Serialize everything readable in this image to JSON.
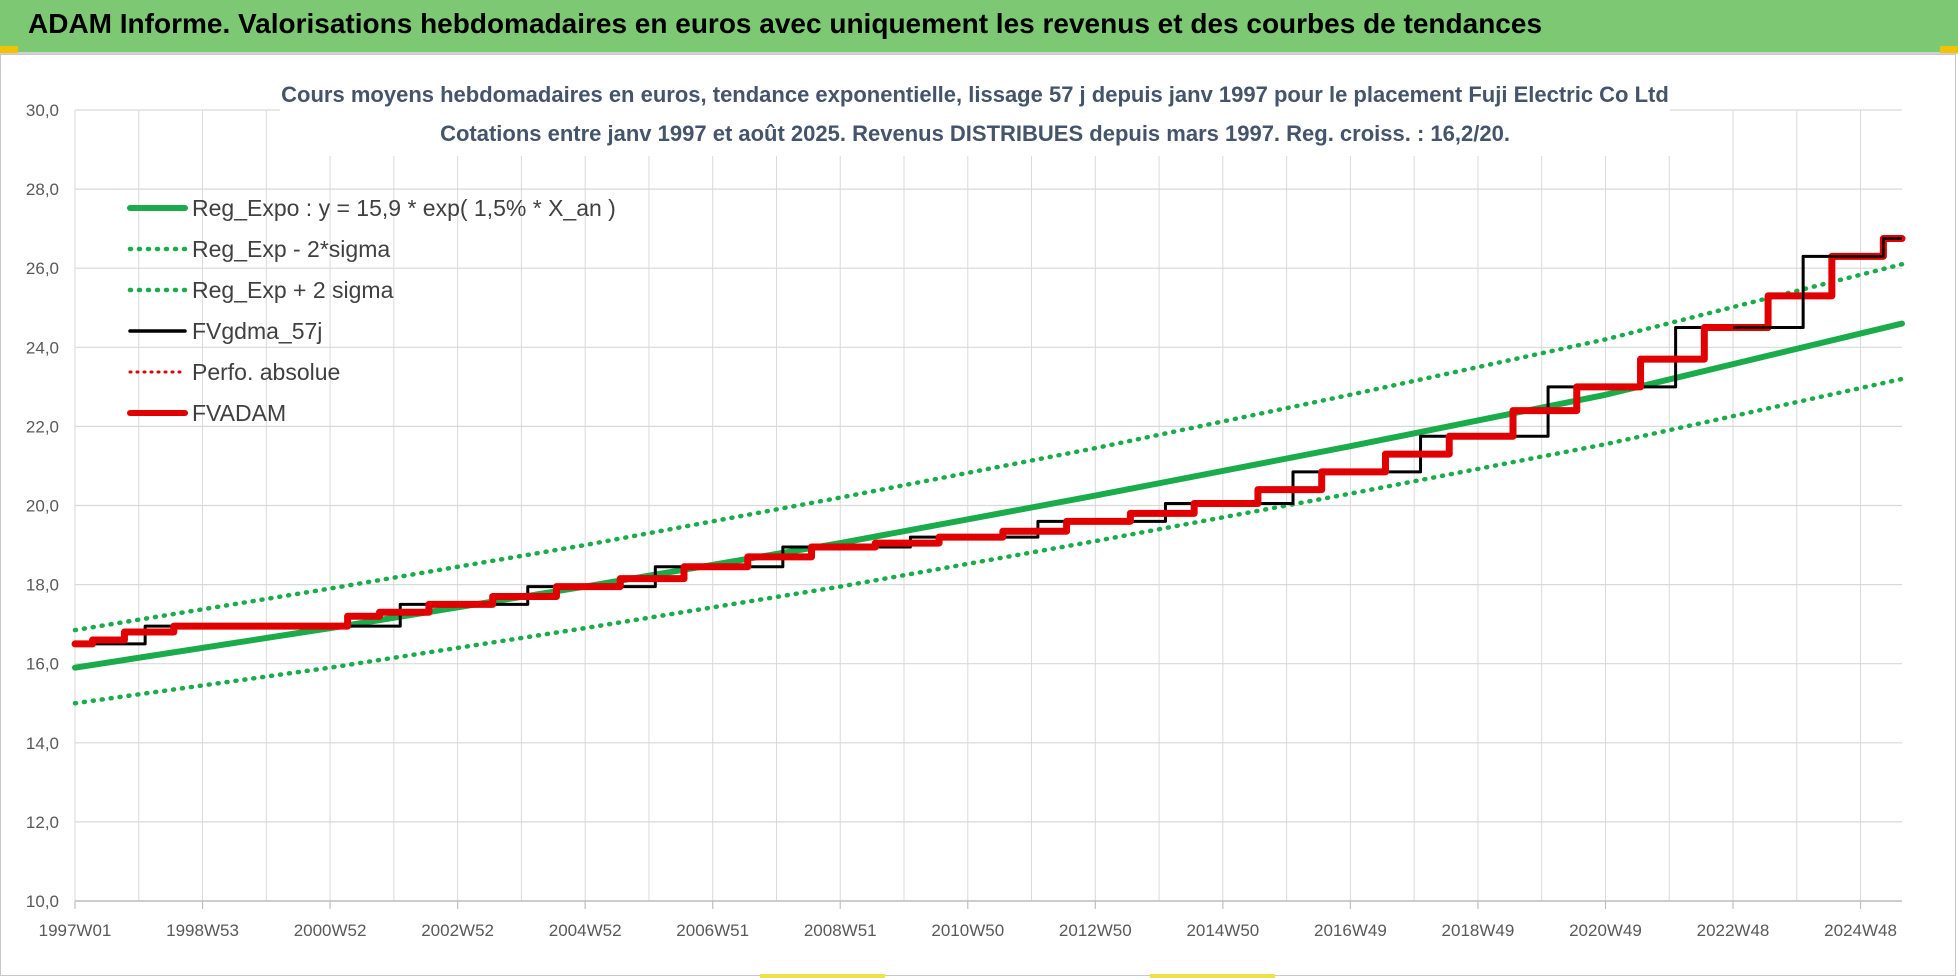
{
  "banner": {
    "title": "ADAM Informe. Valorisations hebdomadaires en euros avec uniquement les revenus et des courbes de tendances"
  },
  "colors": {
    "banner_bg": "#7dc873",
    "trend_green": "#1aab4a",
    "fv_black": "#000000",
    "adam_red": "#e00000",
    "grid": "#d9d9d9"
  },
  "chart_data": {
    "type": "line",
    "title_line1": "Cours moyens hebdomadaires en euros, tendance exponentielle, lissage 57 j depuis janv 1997 pour le placement Fuji Electric Co Ltd",
    "title_line2": "Cotations entre janv 1997 et août 2025. Revenus DISTRIBUES depuis mars 1997. Reg. croiss. : 16,2/20.",
    "xlabel": "",
    "ylabel": "",
    "ylim": [
      10,
      30
    ],
    "yticks": [
      "10,0",
      "12,0",
      "14,0",
      "16,0",
      "18,0",
      "20,0",
      "22,0",
      "24,0",
      "26,0",
      "28,0",
      "30,0"
    ],
    "xlim": [
      1997.0,
      2025.65
    ],
    "xticks": [
      {
        "label": "1997W01",
        "x": 1997.0
      },
      {
        "label": "1998W53",
        "x": 1999.0
      },
      {
        "label": "2000W52",
        "x": 2001.0
      },
      {
        "label": "2002W52",
        "x": 2003.0
      },
      {
        "label": "2004W52",
        "x": 2005.0
      },
      {
        "label": "2006W51",
        "x": 2007.0
      },
      {
        "label": "2008W51",
        "x": 2009.0
      },
      {
        "label": "2010W50",
        "x": 2011.0
      },
      {
        "label": "2012W50",
        "x": 2013.0
      },
      {
        "label": "2014W50",
        "x": 2015.0
      },
      {
        "label": "2016W49",
        "x": 2017.0
      },
      {
        "label": "2018W49",
        "x": 2019.0
      },
      {
        "label": "2020W49",
        "x": 2021.0
      },
      {
        "label": "2022W48",
        "x": 2023.0
      },
      {
        "label": "2024W48",
        "x": 2025.0
      }
    ],
    "grid": true,
    "legend_position": "top-left",
    "series": [
      {
        "name": "Reg_Expo : y = 15,9 * exp( 1,5% *  X_an )",
        "style": "solid",
        "color": "#1aab4a",
        "x": [
          1997.0,
          2001.0,
          2005.0,
          2009.0,
          2013.0,
          2017.0,
          2021.0,
          2025.65
        ],
        "y": [
          15.9,
          16.9,
          17.95,
          19.05,
          20.25,
          21.5,
          22.8,
          24.6
        ]
      },
      {
        "name": "Reg_Exp - 2*sigma",
        "style": "dotted",
        "color": "#1aab4a",
        "x": [
          1997.0,
          2001.0,
          2005.0,
          2009.0,
          2013.0,
          2017.0,
          2021.0,
          2025.65
        ],
        "y": [
          15.0,
          15.9,
          16.9,
          17.95,
          19.1,
          20.3,
          21.55,
          23.2
        ]
      },
      {
        "name": "Reg_Exp + 2 sigma",
        "style": "dotted",
        "color": "#1aab4a",
        "x": [
          1997.0,
          2001.0,
          2005.0,
          2009.0,
          2013.0,
          2017.0,
          2021.0,
          2025.65
        ],
        "y": [
          16.85,
          17.9,
          19.0,
          20.2,
          21.45,
          22.8,
          24.2,
          26.1
        ]
      },
      {
        "name": "FVgdma_57j",
        "style": "solid",
        "color": "#000000",
        "x": [
          1997.0,
          1999.0,
          2001.0,
          2003.0,
          2005.0,
          2007.0,
          2009.0,
          2011.0,
          2013.0,
          2015.0,
          2017.0,
          2019.0,
          2021.0,
          2023.0,
          2025.0,
          2025.65
        ],
        "y": [
          16.5,
          16.95,
          16.95,
          17.5,
          17.95,
          18.45,
          18.95,
          19.2,
          19.6,
          20.05,
          20.85,
          21.75,
          23.0,
          24.5,
          26.3,
          26.75
        ]
      },
      {
        "name": "Perfo. absolue",
        "style": "dotted",
        "color": "#e00000",
        "x": [],
        "y": []
      },
      {
        "name": "FVADAM",
        "style": "solid",
        "color": "#e00000",
        "x": [
          1997.0,
          1997.5,
          1998.0,
          1999.0,
          2000.0,
          2001.0,
          2001.5,
          2002.0,
          2003.0,
          2004.0,
          2005.0,
          2006.0,
          2007.0,
          2008.0,
          2009.0,
          2010.0,
          2011.0,
          2012.0,
          2013.0,
          2014.0,
          2015.0,
          2016.0,
          2017.0,
          2018.0,
          2019.0,
          2020.0,
          2021.0,
          2022.0,
          2023.0,
          2024.0,
          2025.0,
          2025.65
        ],
        "y": [
          16.5,
          16.6,
          16.8,
          16.95,
          16.95,
          16.95,
          17.2,
          17.3,
          17.5,
          17.7,
          17.95,
          18.15,
          18.45,
          18.7,
          18.95,
          19.05,
          19.2,
          19.35,
          19.6,
          19.8,
          20.05,
          20.4,
          20.85,
          21.3,
          21.75,
          22.4,
          23.0,
          23.7,
          24.5,
          25.3,
          26.3,
          26.75
        ]
      }
    ]
  }
}
